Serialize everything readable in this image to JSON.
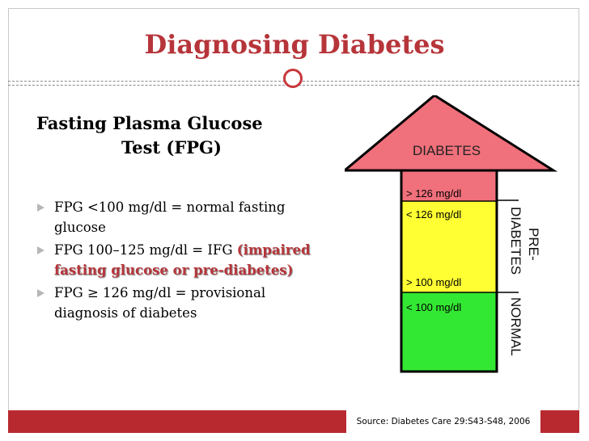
{
  "slide": {
    "title": "Diagnosing Diabetes",
    "heading_line1": "Fasting Plasma Glucose",
    "heading_line2": "Test (FPG)",
    "bullets": [
      {
        "text": "FPG <100 mg/dl = normal fasting glucose",
        "emphasis": ""
      },
      {
        "text": "FPG 100–125 mg/dl = IFG",
        "emphasis": "(impaired fasting glucose or pre-diabetes)"
      },
      {
        "text": "FPG ≥ 126 mg/dl = provisional diagnosis of diabetes",
        "emphasis": ""
      }
    ],
    "source": "Source: Diabetes Care 29:S43-S48, 2006"
  },
  "diagram": {
    "top_label": "DIABETES",
    "levels": [
      {
        "label": "> 126 mg/dl",
        "color": "#f0707b"
      },
      {
        "label": "< 126 mg/dl",
        "color": "#ffff33"
      },
      {
        "label": "> 100 mg/dl",
        "color": "#ffff33"
      },
      {
        "label": "< 100 mg/dl",
        "color": "#33e833"
      }
    ],
    "side_labels": [
      "PRE-",
      "DIABETES",
      "NORMAL"
    ]
  },
  "colors": {
    "accent": "#b6353a",
    "footer_bar": "#b8292f",
    "diabetes": "#f0707b",
    "prediabetes": "#ffff33",
    "normal": "#33e833"
  }
}
